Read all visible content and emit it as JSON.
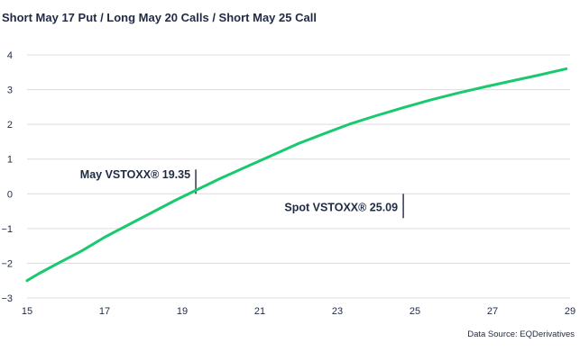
{
  "chart_data": {
    "type": "line",
    "title": "Short May 17 Put / Long May 20 Calls / Short May 25 Call",
    "xlabel": "",
    "ylabel": "",
    "xlim": [
      15,
      29
    ],
    "ylim": [
      -3,
      4
    ],
    "x_ticks": [
      "15",
      "17",
      "19",
      "21",
      "23",
      "25",
      "27",
      "29"
    ],
    "y_ticks": [
      "4",
      "3",
      "2",
      "1",
      "0",
      "−1",
      "−2",
      "−3"
    ],
    "grid": "horizontal",
    "series": [
      {
        "color": "#18c96e",
        "points": [
          [
            15.0,
            -2.5
          ],
          [
            15.3,
            -2.3
          ],
          [
            15.8,
            -2.0
          ],
          [
            16.4,
            -1.65
          ],
          [
            17.0,
            -1.25
          ],
          [
            17.6,
            -0.9
          ],
          [
            18.2,
            -0.55
          ],
          [
            18.8,
            -0.2
          ],
          [
            19.35,
            0.1
          ],
          [
            20.0,
            0.45
          ],
          [
            20.7,
            0.8
          ],
          [
            21.3,
            1.1
          ],
          [
            22.0,
            1.45
          ],
          [
            22.7,
            1.75
          ],
          [
            23.3,
            2.0
          ],
          [
            24.0,
            2.25
          ],
          [
            24.7,
            2.48
          ],
          [
            25.4,
            2.7
          ],
          [
            26.1,
            2.9
          ],
          [
            26.8,
            3.08
          ],
          [
            27.5,
            3.25
          ],
          [
            28.2,
            3.42
          ],
          [
            28.9,
            3.6
          ]
        ]
      }
    ],
    "annotations": [
      {
        "text": "May VSTOXX® 19.35",
        "x": 19.35,
        "line_y": [
          0,
          0.7
        ]
      },
      {
        "text": "Spot VSTOXX® 25.09",
        "x": 24.7,
        "line_y": [
          -0.7,
          0
        ]
      }
    ],
    "source": "Data Source: EQDerivatives"
  }
}
